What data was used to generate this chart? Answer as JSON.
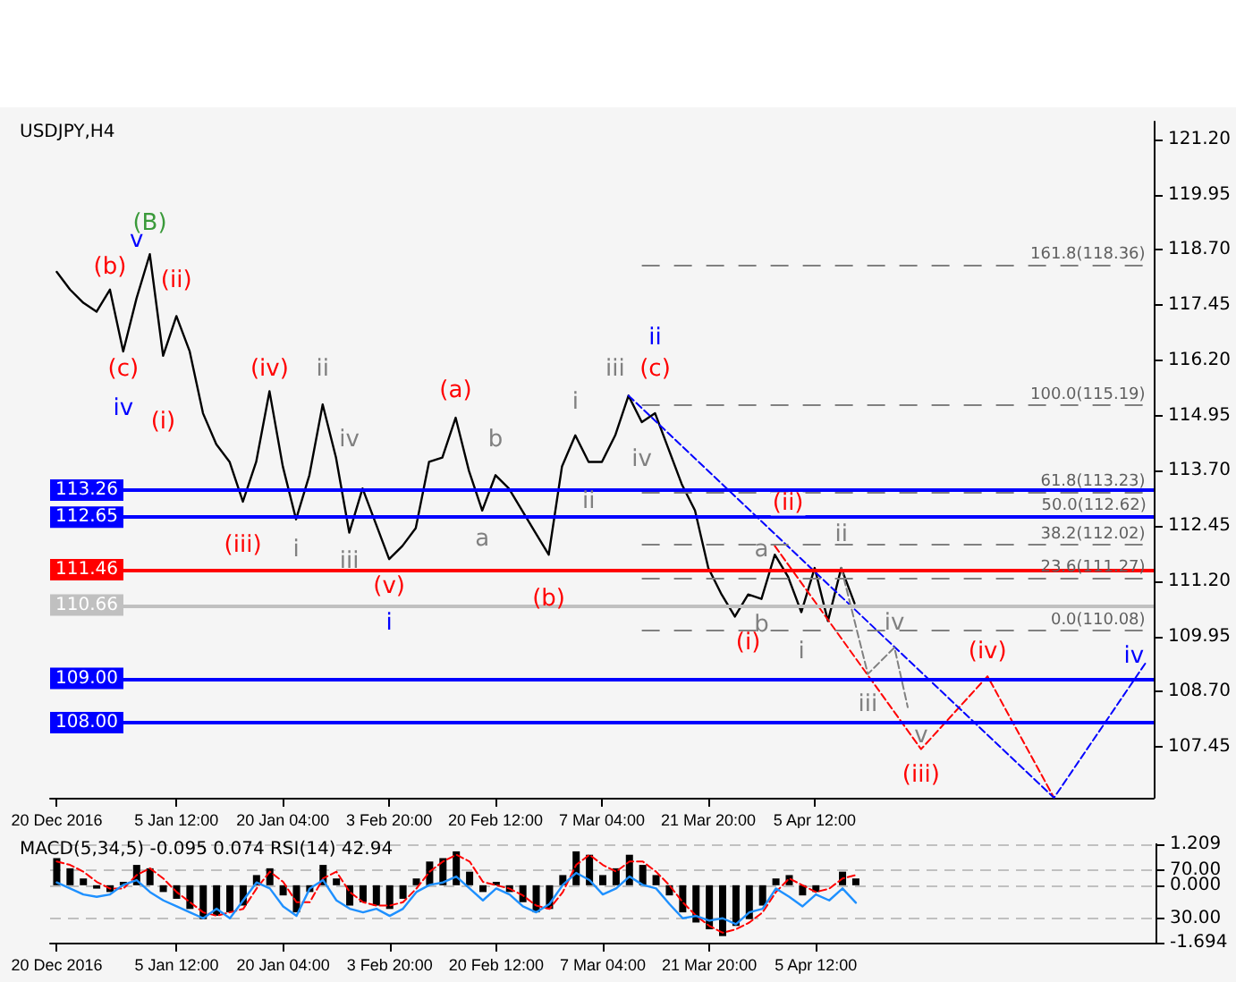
{
  "chart_data": [
    {
      "type": "line",
      "title": "USDJPY,H4",
      "categories": [
        "20 Dec 2016",
        null,
        null,
        null,
        null,
        null,
        null,
        null,
        null,
        "5 Jan 12:00",
        null,
        null,
        null,
        null,
        null,
        null,
        null,
        "20 Jan 04:00",
        null,
        null,
        null,
        null,
        null,
        null,
        null,
        "3 Feb 20:00",
        null,
        null,
        null,
        null,
        null,
        null,
        null,
        "20 Feb 12:00",
        null,
        null,
        null,
        null,
        null,
        null,
        null,
        "7 Mar 04:00",
        null,
        null,
        null,
        null,
        null,
        null,
        null,
        "21 Mar 20:00",
        null,
        null,
        null,
        null,
        null,
        null,
        null,
        "5 Apr 12:00",
        null,
        null,
        null,
        null,
        null,
        null,
        null,
        null,
        null,
        null,
        null,
        null,
        null,
        null,
        null,
        null,
        null,
        null,
        null,
        null,
        null,
        null,
        null,
        null,
        null
      ],
      "series": [
        {
          "color": "#000000",
          "values": [
            118.2,
            117.8,
            117.5,
            117.3,
            117.8,
            116.4,
            117.6,
            118.6,
            116.3,
            117.2,
            116.4,
            115.0,
            114.3,
            113.9,
            113.0,
            113.9,
            115.5,
            113.8,
            112.6,
            113.6,
            115.2,
            114.0,
            112.3,
            113.3,
            112.5,
            111.7,
            112.0,
            112.4,
            113.9,
            114.0,
            114.9,
            113.7,
            112.8,
            113.6,
            113.3,
            112.8,
            112.3,
            111.8,
            113.8,
            114.5,
            113.9,
            113.9,
            114.5,
            115.4,
            114.8,
            115.0,
            114.2,
            113.4,
            112.8,
            111.5,
            110.9,
            110.4,
            110.9,
            110.8,
            111.8,
            111.3,
            110.5,
            111.5,
            110.3,
            111.5,
            110.7,
            null,
            null,
            null,
            null,
            null,
            null,
            null,
            null,
            null,
            null,
            null,
            null,
            null,
            null,
            null,
            null,
            null,
            null,
            null,
            null,
            null,
            null
          ]
        },
        {
          "color": "#ff0000",
          "line_style": "dashed",
          "values": [
            null,
            null,
            null,
            null,
            null,
            null,
            null,
            null,
            null,
            null,
            null,
            null,
            null,
            null,
            null,
            null,
            null,
            null,
            null,
            null,
            null,
            null,
            null,
            null,
            null,
            null,
            null,
            null,
            null,
            null,
            null,
            null,
            null,
            null,
            null,
            null,
            null,
            null,
            null,
            null,
            null,
            null,
            null,
            null,
            null,
            null,
            null,
            null,
            null,
            null,
            null,
            null,
            null,
            null,
            112.0,
            null,
            null,
            null,
            null,
            null,
            null,
            null,
            null,
            null,
            null,
            107.4,
            null,
            null,
            null,
            null,
            109.05,
            null,
            null,
            null,
            null,
            106.3,
            null,
            null,
            null,
            null,
            null,
            null,
            null
          ]
        },
        {
          "color": "#0000ff",
          "line_style": "dashed",
          "values": [
            null,
            null,
            null,
            null,
            null,
            null,
            null,
            null,
            null,
            null,
            null,
            null,
            null,
            null,
            null,
            null,
            null,
            null,
            null,
            null,
            null,
            null,
            null,
            null,
            null,
            null,
            null,
            null,
            null,
            null,
            null,
            null,
            null,
            null,
            null,
            null,
            null,
            null,
            null,
            null,
            null,
            null,
            null,
            115.4,
            null,
            null,
            null,
            null,
            null,
            null,
            null,
            null,
            null,
            null,
            null,
            null,
            null,
            null,
            null,
            null,
            null,
            null,
            null,
            null,
            null,
            null,
            null,
            null,
            null,
            null,
            null,
            null,
            null,
            null,
            null,
            106.3,
            null,
            null,
            null,
            null,
            null,
            null,
            109.4
          ]
        },
        {
          "color": "#808080",
          "line_style": "dashed",
          "values": [
            null,
            null,
            null,
            null,
            null,
            null,
            null,
            null,
            null,
            null,
            null,
            null,
            null,
            null,
            null,
            null,
            null,
            null,
            null,
            null,
            null,
            null,
            null,
            null,
            null,
            null,
            null,
            null,
            null,
            null,
            null,
            null,
            null,
            null,
            null,
            null,
            null,
            null,
            null,
            null,
            null,
            null,
            null,
            null,
            null,
            null,
            null,
            null,
            null,
            null,
            null,
            null,
            null,
            null,
            null,
            null,
            null,
            null,
            null,
            111.5,
            null,
            109.1,
            null,
            109.7,
            108.35,
            null,
            null,
            null,
            null,
            null,
            null,
            null,
            null,
            null,
            null,
            null,
            null,
            null,
            null,
            null,
            null,
            null,
            null
          ]
        }
      ],
      "ylim": [
        106.3,
        121.6
      ],
      "yticks": [
        107.45,
        {
          "value": 108.7,
          "label": "108.70"
        },
        109.95,
        {
          "value": 111.2,
          "label": "111.20"
        },
        112.45,
        {
          "value": 113.7,
          "label": "113.70"
        },
        114.95,
        {
          "value": 116.2,
          "label": "116.20"
        },
        117.45,
        {
          "value": 118.7,
          "label": "118.70"
        },
        119.95,
        {
          "value": 121.2,
          "label": "121.20"
        }
      ],
      "ref_lines": [
        {
          "axis": "y",
          "value": 118.36,
          "label": "161.8(118.36)",
          "color": "#808080",
          "line_style": "dashed"
        },
        {
          "axis": "y",
          "value": 115.19,
          "label": "100.0(115.19)",
          "color": "#808080",
          "line_style": "dashed"
        },
        {
          "axis": "y",
          "value": 113.23,
          "label": "61.8(113.23)",
          "color": "#808080",
          "line_style": "dashed"
        },
        {
          "axis": "y",
          "value": 112.02,
          "label": "38.2(112.02)",
          "color": "#808080",
          "line_style": "dashed"
        },
        {
          "axis": "y",
          "value": 111.27,
          "label": "23.6(111.27)",
          "color": "#808080",
          "line_style": "dashed"
        },
        {
          "axis": "y",
          "value": 110.08,
          "label": "0.0(110.08)",
          "color": "#808080",
          "line_style": "dashed"
        },
        {
          "axis": "y",
          "value": 113.26,
          "label": "113.26",
          "color": "#0000ff"
        },
        {
          "axis": "y",
          "value": 112.65,
          "label": "112.65",
          "color": "#0000ff"
        },
        {
          "axis": "y",
          "value": 111.46,
          "label": "111.46",
          "color": "#ff0000"
        },
        {
          "axis": "y",
          "value": 110.66,
          "label": "110.66",
          "color": "#c0c0c0"
        },
        {
          "axis": "y",
          "value": 109,
          "label": "109.00",
          "color": "#0000ff"
        },
        {
          "axis": "y",
          "value": 108,
          "label": "108.00",
          "color": "#0000ff"
        }
      ],
      "annotations": [
        "(B)",
        "v",
        "(b)",
        "(c)",
        "iv",
        "(i)",
        "(ii)",
        "(iii)",
        "(iv)",
        "i",
        "ii",
        "iii",
        "iv",
        "(v)",
        "i",
        "(a)",
        "a",
        "b",
        "(b)",
        "i",
        "ii",
        "iii",
        "iv",
        "(c)",
        "ii",
        "(i)",
        "a",
        "b",
        "(ii)",
        "i",
        "ii",
        "iii",
        "iv",
        "v",
        "(iii)",
        "(iv)",
        "iv",
        "50.0(112.62)"
      ]
    },
    {
      "type": "bar",
      "title": "MACD(5,34,5) -0.095 0.074 RSI(14) 42.94",
      "categories": [
        "20 Dec 2016",
        null,
        null,
        null,
        null,
        null,
        null,
        null,
        null,
        "5 Jan 12:00",
        null,
        null,
        null,
        null,
        null,
        null,
        null,
        "20 Jan 04:00",
        null,
        null,
        null,
        null,
        null,
        null,
        null,
        "3 Feb 20:00",
        null,
        null,
        null,
        null,
        null,
        null,
        null,
        "20 Feb 12:00",
        null,
        null,
        null,
        null,
        null,
        null,
        null,
        "7 Mar 04:00",
        null,
        null,
        null,
        null,
        null,
        null,
        null,
        "21 Mar 20:00",
        null,
        null,
        null,
        null,
        null,
        null,
        null,
        "5 Apr 12:00",
        null,
        null,
        null,
        null,
        null,
        null,
        null,
        null,
        null,
        null,
        null,
        null,
        null,
        null,
        null,
        null,
        null,
        null,
        null,
        null,
        null,
        null,
        null,
        null,
        null
      ],
      "series": [
        {
          "color": "#000000",
          "values": [
            0.8,
            0.5,
            0.2,
            -0.1,
            -0.2,
            0.1,
            0.6,
            0.5,
            -0.2,
            -0.4,
            -0.7,
            -1.0,
            -0.9,
            -0.8,
            -0.6,
            0.3,
            0.5,
            -0.3,
            -0.8,
            -0.2,
            0.6,
            0.2,
            -0.6,
            -0.5,
            -0.6,
            -0.7,
            -0.4,
            0.2,
            0.7,
            0.8,
            1.0,
            0.4,
            -0.2,
            0.1,
            -0.2,
            -0.5,
            -0.8,
            -0.7,
            0.3,
            1.0,
            0.9,
            0.3,
            0.5,
            0.9,
            0.6,
            0.3,
            -0.3,
            -0.8,
            -1.1,
            -1.3,
            -1.5,
            -1.2,
            -1.0,
            -0.6,
            0.2,
            0.3,
            -0.3,
            -0.2,
            0.0,
            0.4,
            0.2,
            null,
            null,
            null,
            null,
            null,
            null,
            null,
            null,
            null,
            null,
            null,
            null,
            null,
            null,
            null,
            null,
            null,
            null,
            null,
            null,
            null,
            null
          ]
        },
        {
          "type": "line",
          "color": "#ff0000",
          "line_style": "dashed",
          "values": [
            0.7,
            0.6,
            0.4,
            0.1,
            -0.1,
            -0.1,
            0.3,
            0.5,
            0.2,
            -0.2,
            -0.5,
            -0.8,
            -0.9,
            -0.8,
            -0.7,
            -0.1,
            0.4,
            0.1,
            -0.5,
            -0.5,
            0.2,
            0.4,
            -0.2,
            -0.5,
            -0.6,
            -0.6,
            -0.5,
            -0.1,
            0.4,
            0.7,
            0.9,
            0.7,
            0.1,
            0,
            -0.1,
            -0.3,
            -0.6,
            -0.7,
            -0.2,
            0.6,
            0.9,
            0.6,
            0.4,
            0.7,
            0.7,
            0.4,
            0,
            -0.5,
            -0.9,
            -1.2,
            -1.4,
            -1.3,
            -1.1,
            -0.8,
            -0.2,
            0.2,
            0,
            -0.2,
            -0.1,
            0.2,
            0.3,
            null,
            null,
            null,
            null,
            null,
            null,
            null,
            null,
            null,
            null,
            null,
            null,
            null,
            null,
            null,
            null,
            null,
            null,
            null,
            null,
            null,
            null
          ]
        },
        {
          "type": "line",
          "axis": "y2",
          "color": "#1e90ff",
          "values": [
            60,
            55,
            50,
            48,
            50,
            58,
            62,
            52,
            45,
            40,
            35,
            30,
            38,
            30,
            45,
            60,
            55,
            40,
            32,
            55,
            62,
            45,
            38,
            35,
            38,
            32,
            38,
            52,
            58,
            60,
            65,
            55,
            45,
            55,
            50,
            40,
            35,
            42,
            58,
            68,
            62,
            50,
            55,
            65,
            58,
            55,
            42,
            30,
            32,
            28,
            30,
            25,
            35,
            38,
            55,
            48,
            40,
            50,
            45,
            55,
            43,
            null,
            null,
            null,
            null,
            null,
            null,
            null,
            null,
            null,
            null,
            null,
            null,
            null,
            null,
            null,
            null,
            null,
            null,
            null,
            null,
            null,
            null
          ]
        }
      ],
      "ylim": [
        -1.694,
        1.209
      ],
      "yticks": [
        -1.694,
        {
          "value": 0,
          "label": "0.000"
        },
        1.209
      ],
      "y2lim": [
        9.6,
        92
      ],
      "y2ticks": [
        {
          "value": 30,
          "label": "30.00"
        },
        {
          "value": 70,
          "label": "70.00"
        }
      ],
      "grid": "y"
    }
  ]
}
